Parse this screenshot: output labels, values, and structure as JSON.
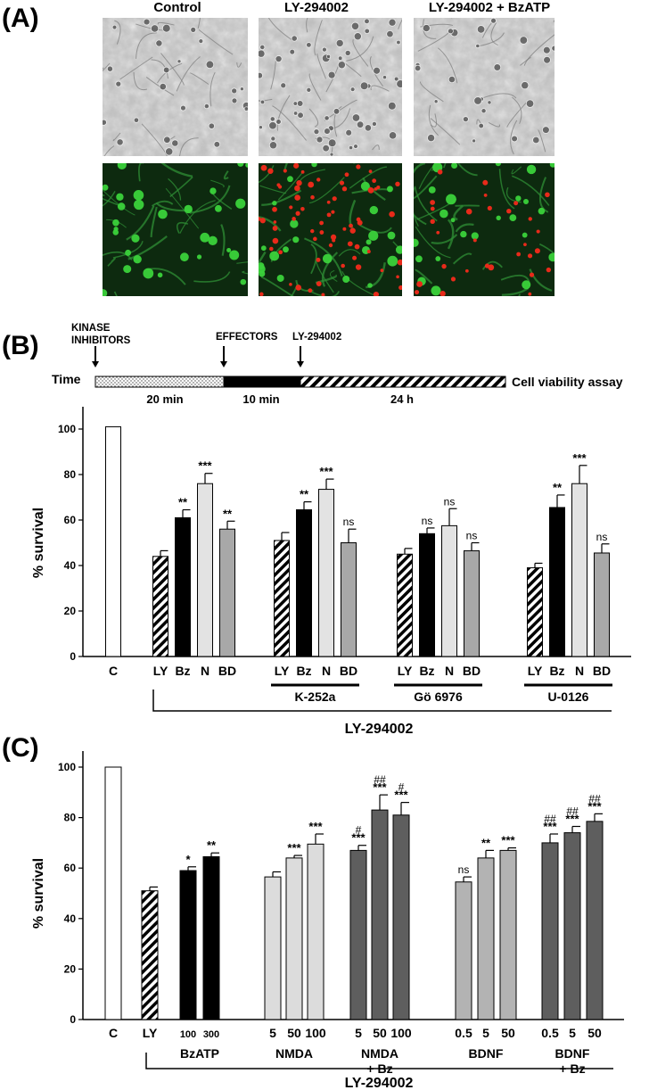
{
  "panel_a": {
    "label": "(A)",
    "columns": [
      "Control",
      "LY-294002",
      "LY-294002 + BzATP"
    ],
    "rows": [
      "phase-contrast",
      "fluorescence"
    ]
  },
  "panel_b": {
    "label": "(B)",
    "timeline": {
      "time_label": "Time",
      "end_label": "Cell viability assay",
      "arrows": [
        "KINASE INHIBITORS",
        "EFFECTORS",
        "LY-294002"
      ],
      "segments": [
        "20 min",
        "10 min",
        "24 h"
      ]
    }
  },
  "panel_c": {
    "label": "(C)"
  },
  "colors": {
    "control": "#ffffff",
    "ly_hatched": "#000000",
    "bz": "#000000",
    "n": "#e3e3e3",
    "bd": "#a8a8a8",
    "nmda": "#dcdcdc",
    "bdnf": "#b3b3b3",
    "combo": "#5e5e5e",
    "fluor_green": "#3bd23b",
    "fluor_red": "#e82a1a"
  },
  "chart_data": [
    {
      "type": "bar",
      "panel": "B",
      "ylabel": "% survival",
      "ylim": [
        0,
        100
      ],
      "yticks": [
        0,
        20,
        40,
        60,
        80,
        100
      ],
      "bars": [
        {
          "label": "C",
          "value": 101,
          "error": 0,
          "style": "control",
          "sig": ""
        },
        {
          "label": "LY",
          "value": 44,
          "error": 2.5,
          "style": "ly_hatched",
          "sig": ""
        },
        {
          "label": "Bz",
          "value": 61,
          "error": 3.5,
          "style": "bz",
          "sig": "**"
        },
        {
          "label": "N",
          "value": 76,
          "error": 4.5,
          "style": "n",
          "sig": "***"
        },
        {
          "label": "BD",
          "value": 56,
          "error": 3.5,
          "style": "bd",
          "sig": "**"
        },
        {
          "label": "LY",
          "value": 51,
          "error": 3.5,
          "style": "ly_hatched",
          "sig": ""
        },
        {
          "label": "Bz",
          "value": 64.5,
          "error": 3.5,
          "style": "bz",
          "sig": "**"
        },
        {
          "label": "N",
          "value": 73.5,
          "error": 4.5,
          "style": "n",
          "sig": "***"
        },
        {
          "label": "BD",
          "value": 50,
          "error": 6,
          "style": "bd",
          "sig": "ns"
        },
        {
          "label": "LY",
          "value": 45,
          "error": 2.5,
          "style": "ly_hatched",
          "sig": ""
        },
        {
          "label": "Bz",
          "value": 54,
          "error": 2.5,
          "style": "bz",
          "sig": "ns"
        },
        {
          "label": "N",
          "value": 57.5,
          "error": 7.5,
          "style": "n",
          "sig": "ns"
        },
        {
          "label": "BD",
          "value": 46.5,
          "error": 3.5,
          "style": "bd",
          "sig": "ns"
        },
        {
          "label": "LY",
          "value": 39,
          "error": 2,
          "style": "ly_hatched",
          "sig": ""
        },
        {
          "label": "Bz",
          "value": 65.5,
          "error": 5.5,
          "style": "bz",
          "sig": "**"
        },
        {
          "label": "N",
          "value": 76,
          "error": 8,
          "style": "n",
          "sig": "***"
        },
        {
          "label": "BD",
          "value": 45.5,
          "error": 4,
          "style": "bd",
          "sig": "ns"
        }
      ],
      "groups": [
        {
          "label": "K-252a",
          "from": 5,
          "to": 8
        },
        {
          "label": "Gö 6976",
          "from": 9,
          "to": 12
        },
        {
          "label": "U-0126",
          "from": 13,
          "to": 16
        }
      ],
      "bracket_label": "LY-294002"
    },
    {
      "type": "bar",
      "panel": "C",
      "ylabel": "% survival",
      "ylim": [
        0,
        100
      ],
      "yticks": [
        0,
        20,
        40,
        60,
        80,
        100
      ],
      "bars": [
        {
          "label": "C",
          "value": 100,
          "error": 0,
          "style": "control",
          "sig": ""
        },
        {
          "label": "LY",
          "value": 51,
          "error": 1.5,
          "style": "ly_hatched",
          "sig": ""
        },
        {
          "label": "100",
          "value": 59,
          "error": 1.5,
          "style": "bz",
          "sig": "*"
        },
        {
          "label": "300",
          "value": 64.5,
          "error": 1.5,
          "style": "bz",
          "sig": "**"
        },
        {
          "label": "5",
          "value": 56.5,
          "error": 2,
          "style": "nmda",
          "sig": ""
        },
        {
          "label": "50",
          "value": 64,
          "error": 1,
          "style": "nmda",
          "sig": "***"
        },
        {
          "label": "100",
          "value": 69.5,
          "error": 4,
          "style": "nmda",
          "sig": "***"
        },
        {
          "label": "5",
          "value": 67,
          "error": 2,
          "style": "combo",
          "sig": "***",
          "hash": "#"
        },
        {
          "label": "50",
          "value": 83,
          "error": 6,
          "style": "combo",
          "sig": "***",
          "hash": "##"
        },
        {
          "label": "100",
          "value": 81,
          "error": 5,
          "style": "combo",
          "sig": "***",
          "hash": "#"
        },
        {
          "label": "0.5",
          "value": 54.5,
          "error": 2,
          "style": "bdnf",
          "sig": "ns"
        },
        {
          "label": "5",
          "value": 64,
          "error": 3,
          "style": "bdnf",
          "sig": "**"
        },
        {
          "label": "50",
          "value": 67,
          "error": 1,
          "style": "bdnf",
          "sig": "***"
        },
        {
          "label": "0.5",
          "value": 70,
          "error": 3.5,
          "style": "combo",
          "sig": "***",
          "hash": "##"
        },
        {
          "label": "5",
          "value": 74,
          "error": 2.5,
          "style": "combo",
          "sig": "***",
          "hash": "##"
        },
        {
          "label": "50",
          "value": 78.5,
          "error": 3,
          "style": "combo",
          "sig": "***",
          "hash": "##"
        }
      ],
      "groups": [
        {
          "label": "BzATP",
          "from": 2,
          "to": 3
        },
        {
          "label": "NMDA",
          "from": 4,
          "to": 6
        },
        {
          "label": "NMDA\n+ Bz",
          "from": 7,
          "to": 9
        },
        {
          "label": "BDNF",
          "from": 10,
          "to": 12
        },
        {
          "label": "BDNF\n+ Bz",
          "from": 13,
          "to": 15
        }
      ],
      "bracket_label": "LY-294002"
    }
  ]
}
